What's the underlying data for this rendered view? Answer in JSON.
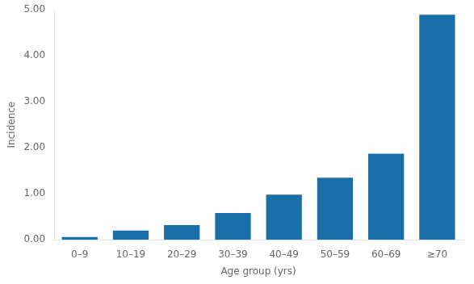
{
  "chart_data": {
    "type": "bar",
    "categories": [
      "0–9",
      "10–19",
      "20–29",
      "30–39",
      "40–49",
      "50–59",
      "60–69",
      "≥70"
    ],
    "values": [
      0.06,
      0.2,
      0.32,
      0.58,
      0.98,
      1.35,
      1.87,
      4.89
    ],
    "color": "#1a6fa8",
    "xlabel": "Age group (yrs)",
    "ylabel": "Incidence",
    "ylim": [
      0,
      5.0
    ],
    "yticks": [
      {
        "value": 0,
        "label": "0.00"
      },
      {
        "value": 1,
        "label": "1.00"
      },
      {
        "value": 2,
        "label": "2.00"
      },
      {
        "value": 3,
        "label": "3.00"
      },
      {
        "value": 4,
        "label": "4.00"
      },
      {
        "value": 5,
        "label": "5.00"
      }
    ],
    "grid": false
  }
}
